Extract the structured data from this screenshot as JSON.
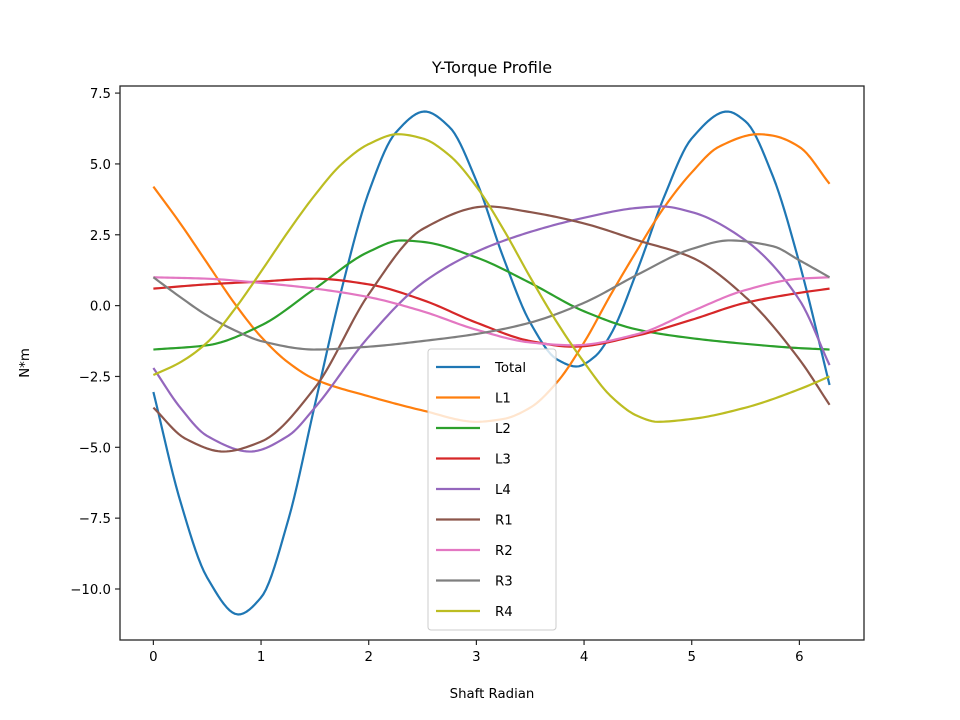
{
  "chart_data": {
    "type": "line",
    "title": "Y-Torque Profile",
    "xlabel": "Shaft Radian",
    "ylabel": "N*m",
    "xlim": [
      -0.31,
      6.6
    ],
    "ylim": [
      -11.8,
      7.75
    ],
    "x_ticks": [
      0,
      1,
      2,
      3,
      4,
      5,
      6
    ],
    "x_tick_labels": [
      "0",
      "1",
      "2",
      "3",
      "4",
      "5",
      "6"
    ],
    "y_ticks": [
      7.5,
      5.0,
      2.5,
      0.0,
      -2.5,
      -5.0,
      -7.5,
      -10.0
    ],
    "y_tick_labels": [
      "7.5",
      "5.0",
      "2.5",
      "0.0",
      "−2.5",
      "−5.0",
      "−7.5",
      "−10.0"
    ],
    "grid": false,
    "legend_position": "lower center",
    "series": [
      {
        "name": "Total",
        "color": "#1f77b4",
        "x": [
          0,
          0.25,
          0.5,
          0.79,
          1.0,
          1.25,
          1.5,
          1.75,
          2.0,
          2.25,
          2.52,
          2.75,
          3.0,
          3.25,
          3.5,
          3.75,
          3.93,
          4.1,
          4.25,
          4.5,
          4.75,
          5.0,
          5.33,
          5.5,
          5.75,
          6.0,
          6.28
        ],
        "y": [
          -3.05,
          -6.9,
          -9.6,
          -10.9,
          -10.3,
          -7.6,
          -3.5,
          0.6,
          4.0,
          6.1,
          6.85,
          6.3,
          4.4,
          1.7,
          -0.6,
          -1.9,
          -2.15,
          -1.8,
          -1.0,
          1.3,
          3.9,
          5.9,
          6.85,
          6.5,
          4.6,
          1.5,
          -2.8
        ]
      },
      {
        "name": "L1",
        "color": "#ff7f0e",
        "x": [
          0,
          0.25,
          0.5,
          0.75,
          1.0,
          1.25,
          1.5,
          2.0,
          2.5,
          3.0,
          3.25,
          3.5,
          3.75,
          4.0,
          4.25,
          4.5,
          4.75,
          5.0,
          5.25,
          5.62,
          5.75,
          6.0,
          6.28
        ],
        "y": [
          4.2,
          2.9,
          1.5,
          0.1,
          -1.1,
          -2.0,
          -2.6,
          -3.2,
          -3.7,
          -4.1,
          -4.0,
          -3.6,
          -2.7,
          -1.3,
          0.4,
          2.0,
          3.5,
          4.7,
          5.6,
          6.05,
          6.0,
          5.6,
          4.3
        ]
      },
      {
        "name": "L2",
        "color": "#2ca02c",
        "x": [
          0,
          0.5,
          1.0,
          1.5,
          2.0,
          2.3,
          2.5,
          3.0,
          3.5,
          4.0,
          4.5,
          5.0,
          5.5,
          6.0,
          6.28
        ],
        "y": [
          -1.55,
          -1.4,
          -0.7,
          0.6,
          1.9,
          2.3,
          2.25,
          1.7,
          0.8,
          -0.2,
          -0.85,
          -1.15,
          -1.35,
          -1.5,
          -1.55
        ]
      },
      {
        "name": "L3",
        "color": "#d62728",
        "x": [
          0,
          0.5,
          1.0,
          1.5,
          2.0,
          2.5,
          3.0,
          3.5,
          3.9,
          4.5,
          5.0,
          5.5,
          6.0,
          6.28
        ],
        "y": [
          0.6,
          0.75,
          0.85,
          0.95,
          0.75,
          0.2,
          -0.6,
          -1.25,
          -1.45,
          -1.05,
          -0.5,
          0.1,
          0.45,
          0.6
        ]
      },
      {
        "name": "L4",
        "color": "#9467bd",
        "x": [
          0,
          0.25,
          0.5,
          0.9,
          1.25,
          1.5,
          2.0,
          2.5,
          3.0,
          3.5,
          4.0,
          4.5,
          4.72,
          5.0,
          5.5,
          6.0,
          6.28
        ],
        "y": [
          -2.2,
          -3.6,
          -4.6,
          -5.15,
          -4.6,
          -3.6,
          -1.1,
          0.8,
          1.9,
          2.6,
          3.1,
          3.45,
          3.5,
          3.3,
          2.3,
          0.2,
          -2.1
        ]
      },
      {
        "name": "R1",
        "color": "#8c564b",
        "x": [
          0,
          0.3,
          0.65,
          1.0,
          1.5,
          2.0,
          2.5,
          3.1,
          3.5,
          4.0,
          4.5,
          5.0,
          5.5,
          6.0,
          6.28
        ],
        "y": [
          -3.6,
          -4.7,
          -5.15,
          -4.8,
          -2.9,
          0.4,
          2.7,
          3.5,
          3.3,
          2.9,
          2.3,
          1.7,
          0.3,
          -1.9,
          -3.5
        ]
      },
      {
        "name": "R2",
        "color": "#e377c2",
        "x": [
          0,
          0.5,
          1.0,
          1.5,
          2.0,
          2.5,
          3.0,
          3.5,
          3.9,
          4.5,
          5.0,
          5.5,
          6.0,
          6.28
        ],
        "y": [
          1.0,
          0.95,
          0.8,
          0.6,
          0.3,
          -0.2,
          -0.85,
          -1.3,
          -1.4,
          -1.0,
          -0.2,
          0.55,
          0.95,
          1.0
        ]
      },
      {
        "name": "R3",
        "color": "#7f7f7f",
        "x": [
          0,
          0.25,
          0.5,
          0.8,
          1.0,
          1.5,
          2.0,
          2.5,
          3.0,
          3.5,
          4.0,
          4.5,
          5.0,
          5.35,
          5.75,
          6.0,
          6.28
        ],
        "y": [
          1.0,
          0.3,
          -0.35,
          -0.95,
          -1.25,
          -1.55,
          -1.45,
          -1.25,
          -1.0,
          -0.6,
          0.1,
          1.1,
          2.0,
          2.3,
          2.1,
          1.6,
          1.0
        ]
      },
      {
        "name": "R4",
        "color": "#bcbd22",
        "x": [
          0,
          0.25,
          0.5,
          0.75,
          1.0,
          1.25,
          1.5,
          1.75,
          2.0,
          2.27,
          2.5,
          2.75,
          3.0,
          3.25,
          3.5,
          3.75,
          4.0,
          4.25,
          4.5,
          4.68,
          5.0,
          5.5,
          6.0,
          6.28
        ],
        "y": [
          -2.45,
          -2.0,
          -1.3,
          -0.15,
          1.2,
          2.6,
          3.9,
          5.0,
          5.7,
          6.05,
          5.9,
          5.3,
          4.2,
          2.7,
          1.0,
          -0.6,
          -2.0,
          -3.2,
          -3.9,
          -4.1,
          -4.0,
          -3.6,
          -2.95,
          -2.5
        ]
      }
    ]
  }
}
